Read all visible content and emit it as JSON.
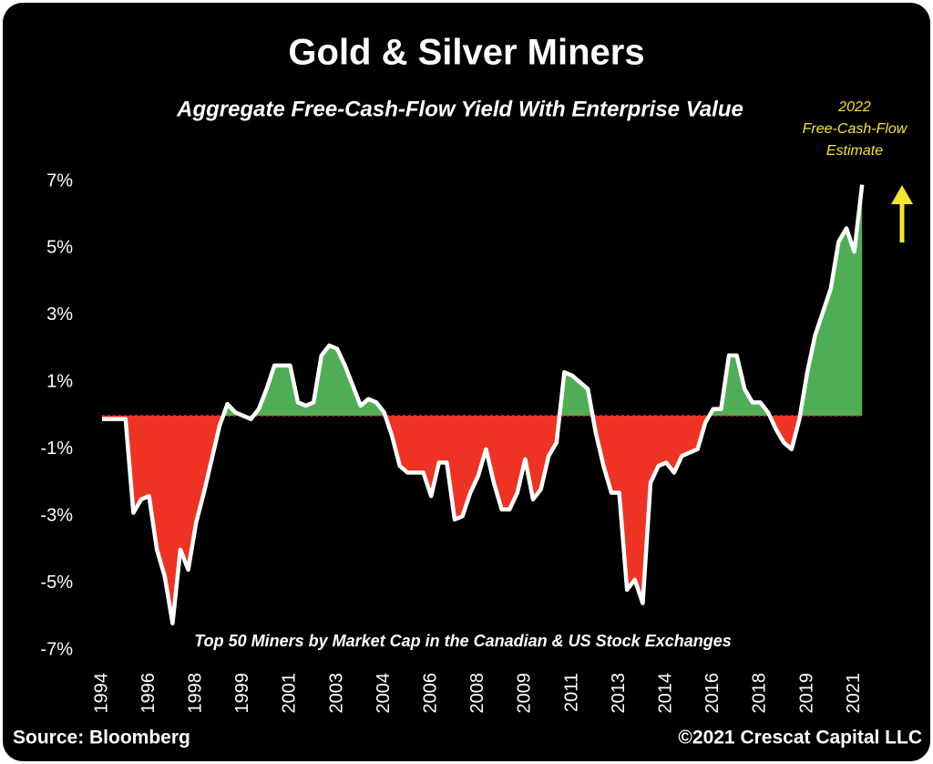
{
  "chart_data": {
    "type": "area_line",
    "title": "Gold & Silver Miners",
    "subtitle": "Aggregate Free-Cash-Flow Yield With Enterprise Value",
    "annotation": [
      "2022",
      "Free-Cash-Flow",
      "Estimate"
    ],
    "note": "Top 50 Miners by Market Cap in the Canadian & US Stock Exchanges",
    "source": "Source: Bloomberg",
    "copyright": "©2021 Crescat Capital LLC",
    "categories": [
      "1994",
      null,
      null,
      null,
      null,
      null,
      "1996",
      null,
      null,
      null,
      null,
      null,
      "1998",
      null,
      null,
      null,
      null,
      null,
      "1999",
      null,
      null,
      null,
      null,
      null,
      "2001",
      null,
      null,
      null,
      null,
      null,
      "2003",
      null,
      null,
      null,
      null,
      null,
      "2004",
      null,
      null,
      null,
      null,
      null,
      "2006",
      null,
      null,
      null,
      null,
      null,
      "2008",
      null,
      null,
      null,
      null,
      null,
      "2009",
      null,
      null,
      null,
      null,
      null,
      "2011",
      null,
      null,
      null,
      null,
      null,
      "2013",
      null,
      null,
      null,
      null,
      null,
      "2014",
      null,
      null,
      null,
      null,
      null,
      "2016",
      null,
      null,
      null,
      null,
      null,
      "2018",
      null,
      null,
      null,
      null,
      null,
      "2019",
      null,
      null,
      null,
      null,
      null,
      "2021",
      null
    ],
    "values": [
      -0.1,
      -0.1,
      -0.1,
      -0.1,
      -2.9,
      -2.5,
      -2.4,
      -4.0,
      -4.8,
      -6.2,
      -4.0,
      -4.6,
      -3.2,
      -2.3,
      -1.3,
      -0.3,
      0.35,
      0.1,
      0.0,
      -0.1,
      0.2,
      0.8,
      1.5,
      1.5,
      1.5,
      0.4,
      0.3,
      0.4,
      1.8,
      2.1,
      2.0,
      1.5,
      0.9,
      0.3,
      0.5,
      0.4,
      0.1,
      -0.6,
      -1.5,
      -1.7,
      -1.7,
      -1.7,
      -2.4,
      -1.4,
      -1.4,
      -3.1,
      -3.0,
      -2.3,
      -1.8,
      -1.0,
      -2.0,
      -2.8,
      -2.8,
      -2.3,
      -1.3,
      -2.5,
      -2.2,
      -1.2,
      -0.8,
      1.3,
      1.2,
      1.0,
      0.8,
      -0.5,
      -1.5,
      -2.3,
      -2.3,
      -5.2,
      -4.9,
      -5.6,
      -2.0,
      -1.5,
      -1.4,
      -1.7,
      -1.2,
      -1.1,
      -1.0,
      -0.2,
      0.2,
      0.2,
      1.8,
      1.8,
      0.8,
      0.4,
      0.4,
      0.1,
      -0.4,
      -0.8,
      -1.0,
      -0.1,
      1.3,
      2.4,
      3.1,
      3.8,
      5.2,
      5.6,
      4.9,
      6.9
    ],
    "color": "#ffffff",
    "positive_color": "#4fae55",
    "negative_color": "#ee3224",
    "ylim": [
      -7,
      7
    ],
    "yticks": [
      {
        "value": 7,
        "label": "7%"
      },
      {
        "value": 5,
        "label": "5%"
      },
      {
        "value": 3,
        "label": "3%"
      },
      {
        "value": 1,
        "label": "1%"
      },
      {
        "value": -1,
        "label": "-1%"
      },
      {
        "value": -3,
        "label": "-3%"
      },
      {
        "value": -5,
        "label": "-5%"
      },
      {
        "value": -7,
        "label": "-7%"
      }
    ],
    "grid": false
  }
}
